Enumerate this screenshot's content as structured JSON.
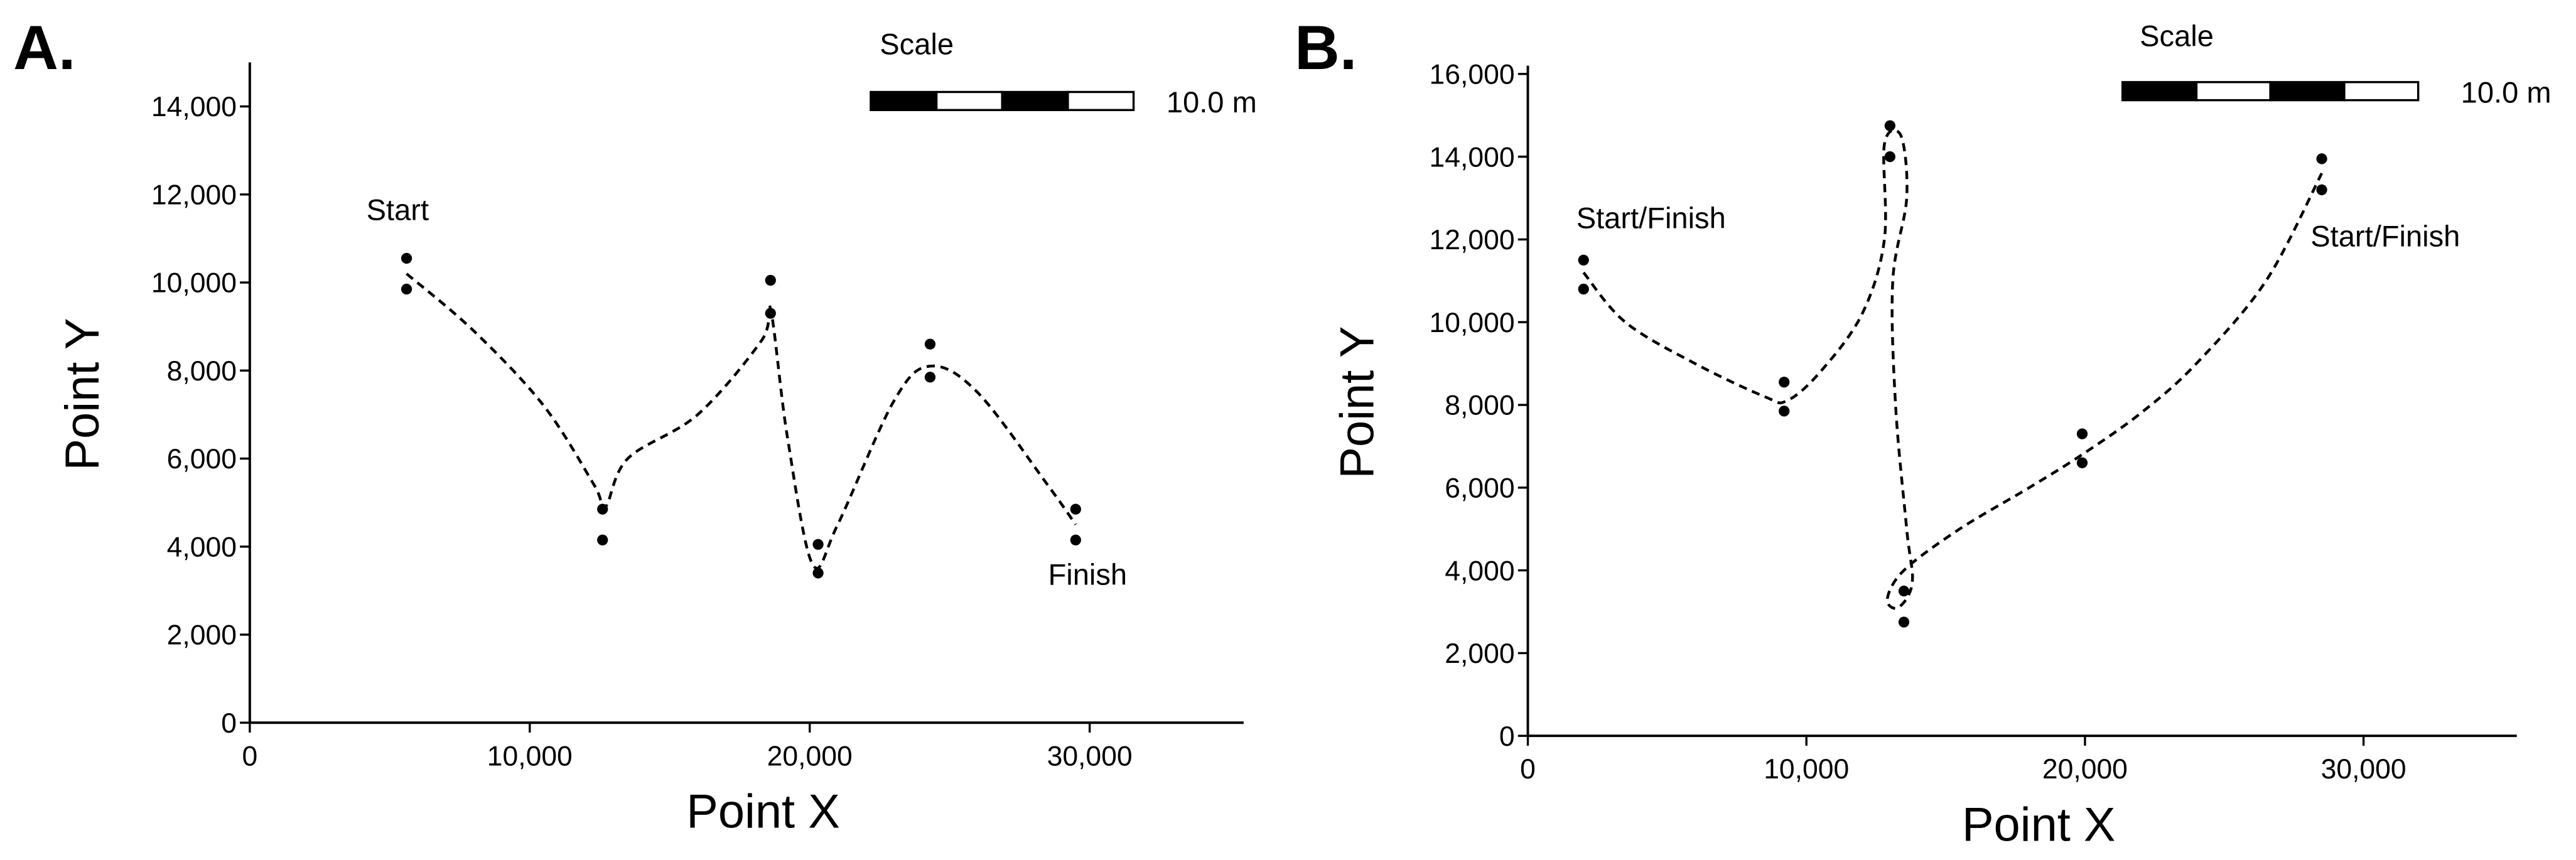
{
  "chart_data": [
    {
      "type": "scatter",
      "panel": "A.",
      "xlabel": "Point X",
      "ylabel": "Point Y",
      "xlim": [
        0,
        35500
      ],
      "ylim": [
        0,
        15000
      ],
      "xticks": [
        0,
        {
          "value": 10000,
          "label": "10,000"
        },
        {
          "value": 20000,
          "label": "20,000"
        },
        {
          "value": 30000,
          "label": "30,000"
        }
      ],
      "yticks": [
        0,
        {
          "value": 2000,
          "label": "2,000"
        },
        {
          "value": 4000,
          "label": "4,000"
        },
        {
          "value": 6000,
          "label": "6,000"
        },
        {
          "value": 8000,
          "label": "8,000"
        },
        {
          "value": 10000,
          "label": "10,000"
        },
        {
          "value": 12000,
          "label": "12,000"
        },
        {
          "value": 14000,
          "label": "14,000"
        }
      ],
      "scale_title": "Scale",
      "scale_label": "10.0 m",
      "annotations": [
        "Start",
        "Finish"
      ],
      "series": [
        {
          "type": "scatter",
          "color": "#000000",
          "x": [
            5600,
            5600,
            12600,
            12600,
            18600,
            18600,
            20300,
            20300,
            24300,
            24300,
            29500,
            29500
          ],
          "values": [
            10550,
            9850,
            4850,
            4150,
            10050,
            9300,
            4050,
            3400,
            8600,
            7850,
            4850,
            4150
          ]
        },
        {
          "type": "line",
          "color": "#000000",
          "dashed": true,
          "x": [
            5600,
            8000,
            10500,
            12300,
            12700,
            13500,
            16000,
            18300,
            18600,
            19200,
            20100,
            21000,
            23000,
            24300,
            26000,
            28500,
            29500
          ],
          "values": [
            10200,
            8900,
            7200,
            5400,
            4900,
            6000,
            7000,
            8700,
            9400,
            6500,
            3600,
            4500,
            7300,
            8100,
            7500,
            5400,
            4500
          ]
        }
      ]
    },
    {
      "type": "scatter",
      "panel": "B.",
      "xlabel": "Point X",
      "ylabel": "Point Y",
      "xlim": [
        0,
        35500
      ],
      "ylim": [
        0,
        16200
      ],
      "xticks": [
        0,
        {
          "value": 10000,
          "label": "10,000"
        },
        {
          "value": 20000,
          "label": "20,000"
        },
        {
          "value": 30000,
          "label": "30,000"
        }
      ],
      "yticks": [
        0,
        {
          "value": 2000,
          "label": "2,000"
        },
        {
          "value": 4000,
          "label": "4,000"
        },
        {
          "value": 6000,
          "label": "6,000"
        },
        {
          "value": 8000,
          "label": "8,000"
        },
        {
          "value": 10000,
          "label": "10,000"
        },
        {
          "value": 12000,
          "label": "12,000"
        },
        {
          "value": 14000,
          "label": "14,000"
        },
        {
          "value": 16000,
          "label": "16,000"
        }
      ],
      "scale_title": "Scale",
      "scale_label": "10.0 m",
      "annotations": [
        "Start/Finish",
        "Start/Finish"
      ],
      "series": [
        {
          "type": "scatter",
          "color": "#000000",
          "x": [
            2000,
            2000,
            9200,
            9200,
            13000,
            13000,
            13500,
            13500,
            19900,
            19900,
            28500,
            28500
          ],
          "values": [
            11500,
            10800,
            8550,
            7850,
            14750,
            14000,
            3500,
            2750,
            7300,
            6600,
            13950,
            13200
          ]
        },
        {
          "type": "line",
          "color": "#000000",
          "dashed": true,
          "x": [
            2000,
            3500,
            6000,
            8500,
            9300,
            10500,
            12000,
            12800,
            12800,
            13400,
            13600,
            13100,
            13200,
            13600,
            13800,
            13300,
            12900,
            13500,
            15500,
            18000,
            19900,
            22000,
            24000,
            26500,
            28500
          ],
          "values": [
            11200,
            10000,
            9000,
            8200,
            8100,
            8800,
            10200,
            12000,
            14300,
            14500,
            13000,
            11000,
            8000,
            5000,
            3700,
            3100,
            3300,
            4000,
            5000,
            6000,
            6800,
            7800,
            9000,
            11000,
            13600
          ]
        }
      ]
    }
  ]
}
